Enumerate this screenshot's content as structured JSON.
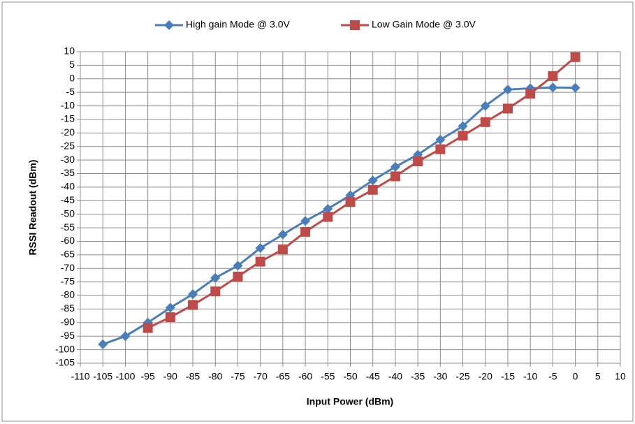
{
  "chart_data": {
    "type": "line",
    "x_label": "Input Power (dBm)",
    "y_label": "RSSI Readout (dBm)",
    "x": [
      -105,
      -100,
      -95,
      -90,
      -85,
      -80,
      -75,
      -70,
      -65,
      -60,
      -55,
      -50,
      -45,
      -40,
      -35,
      -30,
      -25,
      -20,
      -15,
      -10,
      -5,
      0
    ],
    "series": [
      {
        "name": "High gain Mode @ 3.0V",
        "color": "#4a7ebb",
        "marker": "diamond",
        "values": [
          -98,
          -95,
          -90,
          -84.5,
          -79.5,
          -73.5,
          -69,
          -62.5,
          -57.5,
          -52.5,
          -48,
          -43,
          -37.5,
          -32.5,
          -28,
          -22.5,
          -17.5,
          -10,
          -4,
          -3.5,
          -3.2,
          -3.3
        ]
      },
      {
        "name": "Low Gain Mode @ 3.0V",
        "color": "#be4b48",
        "marker": "square",
        "values": [
          null,
          null,
          -92,
          -88,
          -83.5,
          -78.5,
          -73,
          -67.5,
          -63,
          -56.5,
          -51,
          -45.5,
          -41,
          -36,
          -30.5,
          -26,
          -21,
          -16,
          -11,
          -5.5,
          1,
          8
        ]
      }
    ],
    "xlim": [
      -110,
      10
    ],
    "xticks": [
      -110,
      -105,
      -100,
      -95,
      -90,
      -85,
      -80,
      -75,
      -70,
      -65,
      -60,
      -55,
      -50,
      -45,
      -40,
      -35,
      -30,
      -25,
      -20,
      -15,
      -10,
      -5,
      0,
      5,
      10
    ],
    "ylim": [
      -105,
      10
    ],
    "yticks": [
      -105,
      -100,
      -95,
      -90,
      -85,
      -80,
      -75,
      -70,
      -65,
      -60,
      -55,
      -50,
      -45,
      -40,
      -35,
      -30,
      -25,
      -20,
      -15,
      -10,
      -5,
      0,
      5,
      10
    ],
    "grid": true,
    "legend": "top"
  }
}
